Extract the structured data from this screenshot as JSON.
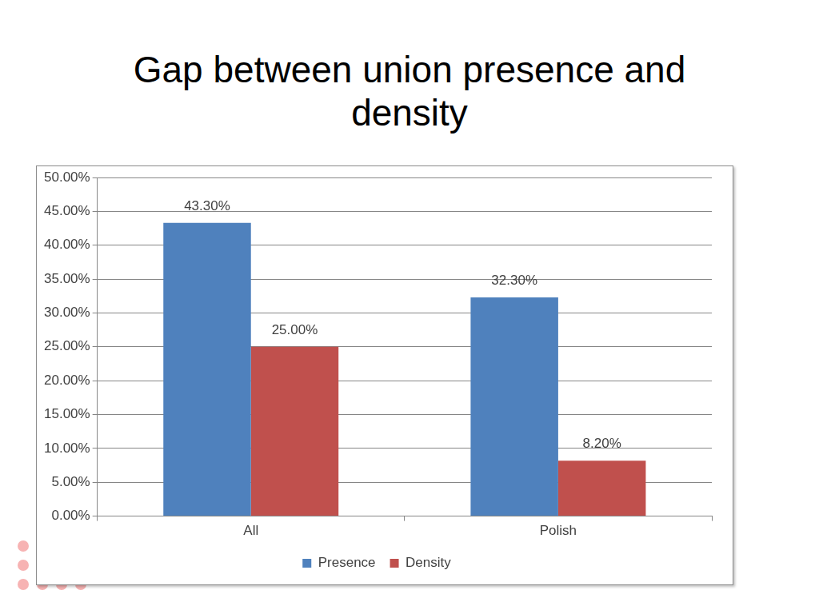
{
  "chart_data": {
    "type": "bar",
    "title": "Gap between union presence and density",
    "categories": [
      "All",
      "Polish"
    ],
    "series": [
      {
        "name": "Presence",
        "color": "#4f81bd",
        "values": [
          43.3,
          32.3
        ],
        "value_labels": [
          "43.30%",
          "32.30%"
        ]
      },
      {
        "name": "Density",
        "color": "#c0504d",
        "values": [
          25.0,
          8.2
        ],
        "value_labels": [
          "25.00%",
          "8.20%"
        ]
      }
    ],
    "ylim": [
      0,
      50
    ],
    "yticks": [
      {
        "value": 0,
        "label": "0.00%"
      },
      {
        "value": 5,
        "label": "5.00%"
      },
      {
        "value": 10,
        "label": "10.00%"
      },
      {
        "value": 15,
        "label": "15.00%"
      },
      {
        "value": 20,
        "label": "20.00%"
      },
      {
        "value": 25,
        "label": "25.00%"
      },
      {
        "value": 30,
        "label": "30.00%"
      },
      {
        "value": 35,
        "label": "35.00%"
      },
      {
        "value": 40,
        "label": "40.00%"
      },
      {
        "value": 45,
        "label": "45.00%"
      },
      {
        "value": 50,
        "label": "50.00%"
      }
    ],
    "grid": true,
    "legend": "bottom",
    "data_labels": true
  }
}
